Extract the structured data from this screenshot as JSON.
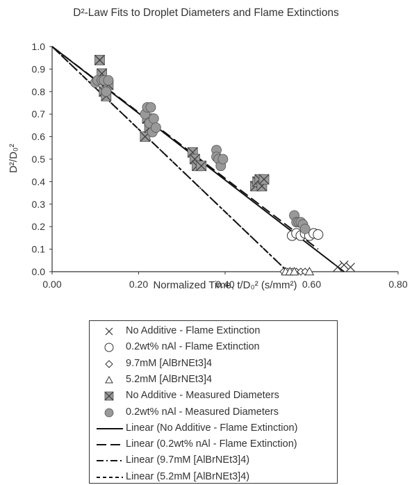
{
  "chart_data": {
    "type": "scatter",
    "title": "D²-Law Fits to Droplet Diameters and Flame Extinctions",
    "xlabel": "Normalized Time, t/D₀² (s/mm²)",
    "ylabel": "D²/D₀²",
    "xlim": [
      0,
      0.8
    ],
    "ylim": [
      0,
      1.0
    ],
    "x_ticks": [
      "0.00",
      "0.20",
      "0.40",
      "0.60",
      "0.80"
    ],
    "y_ticks": [
      "0.0",
      "0.1",
      "0.2",
      "0.3",
      "0.4",
      "0.5",
      "0.6",
      "0.7",
      "0.8",
      "0.9",
      "1.0"
    ],
    "grid": false,
    "legend_position": "bottom",
    "series": [
      {
        "name": "No Additive - Flame Extinction",
        "marker": "x",
        "points": [
          [
            0.66,
            0.02
          ],
          [
            0.675,
            0.03
          ],
          [
            0.69,
            0.02
          ]
        ]
      },
      {
        "name": "0.2wt% nAl - Flame Extinction",
        "marker": "circle-open",
        "points": [
          [
            0.555,
            0.16
          ],
          [
            0.565,
            0.17
          ],
          [
            0.575,
            0.16
          ],
          [
            0.585,
            0.17
          ],
          [
            0.595,
            0.16
          ],
          [
            0.605,
            0.17
          ],
          [
            0.615,
            0.165
          ]
        ]
      },
      {
        "name": "9.7mM [AlBrNEt3]4",
        "marker": "diamond-open",
        "points": [
          [
            0.535,
            0.0
          ],
          [
            0.545,
            0.0
          ],
          [
            0.555,
            0.0
          ],
          [
            0.565,
            0.0
          ],
          [
            0.575,
            0.0
          ],
          [
            0.585,
            0.0
          ]
        ]
      },
      {
        "name": "5.2mM [AlBrNEt3]4",
        "marker": "triangle-open",
        "points": [
          [
            0.54,
            0.0
          ],
          [
            0.55,
            0.0
          ],
          [
            0.56,
            0.0
          ],
          [
            0.595,
            0.0
          ]
        ]
      },
      {
        "name": "No Additive - Measured Diameters",
        "marker": "x-box",
        "points": [
          [
            0.11,
            0.94
          ],
          [
            0.115,
            0.88
          ],
          [
            0.12,
            0.8
          ],
          [
            0.125,
            0.78
          ],
          [
            0.13,
            0.83
          ],
          [
            0.215,
            0.6
          ],
          [
            0.22,
            0.68
          ],
          [
            0.225,
            0.64
          ],
          [
            0.325,
            0.53
          ],
          [
            0.33,
            0.5
          ],
          [
            0.335,
            0.47
          ],
          [
            0.345,
            0.47
          ],
          [
            0.47,
            0.38
          ],
          [
            0.475,
            0.4
          ],
          [
            0.48,
            0.41
          ],
          [
            0.485,
            0.38
          ],
          [
            0.49,
            0.41
          ]
        ]
      },
      {
        "name": "0.2wt% nAl - Measured Diameters",
        "marker": "circle-filled",
        "points": [
          [
            0.1,
            0.84
          ],
          [
            0.105,
            0.85
          ],
          [
            0.115,
            0.85
          ],
          [
            0.12,
            0.85
          ],
          [
            0.125,
            0.8
          ],
          [
            0.13,
            0.85
          ],
          [
            0.215,
            0.7
          ],
          [
            0.22,
            0.73
          ],
          [
            0.225,
            0.66
          ],
          [
            0.228,
            0.73
          ],
          [
            0.232,
            0.62
          ],
          [
            0.235,
            0.68
          ],
          [
            0.24,
            0.64
          ],
          [
            0.38,
            0.54
          ],
          [
            0.38,
            0.51
          ],
          [
            0.385,
            0.5
          ],
          [
            0.39,
            0.47
          ],
          [
            0.395,
            0.5
          ],
          [
            0.56,
            0.25
          ],
          [
            0.565,
            0.22
          ],
          [
            0.57,
            0.22
          ],
          [
            0.575,
            0.22
          ],
          [
            0.58,
            0.21
          ],
          [
            0.585,
            0.19
          ]
        ]
      }
    ],
    "fits": [
      {
        "name": "Linear (No Additive - Flame Extinction)",
        "style": "solid",
        "x0": 0.0,
        "y0": 1.0,
        "x1": 0.675,
        "y1": 0.0
      },
      {
        "name": "Linear (0.2wt% nAl - Flame Extinction)",
        "style": "dash",
        "x0": 0.0,
        "y0": 1.0,
        "x1": 0.615,
        "y1": 0.1
      },
      {
        "name": "Linear (9.7mM [AlBrNEt3]4)",
        "style": "dashdot",
        "x0": 0.0,
        "y0": 1.0,
        "x1": 0.545,
        "y1": 0.0
      },
      {
        "name": "Linear (5.2mM [AlBrNEt3]4)",
        "style": "shortdash",
        "x0": 0.0,
        "y0": 1.0,
        "x1": 0.545,
        "y1": 0.0
      }
    ]
  }
}
